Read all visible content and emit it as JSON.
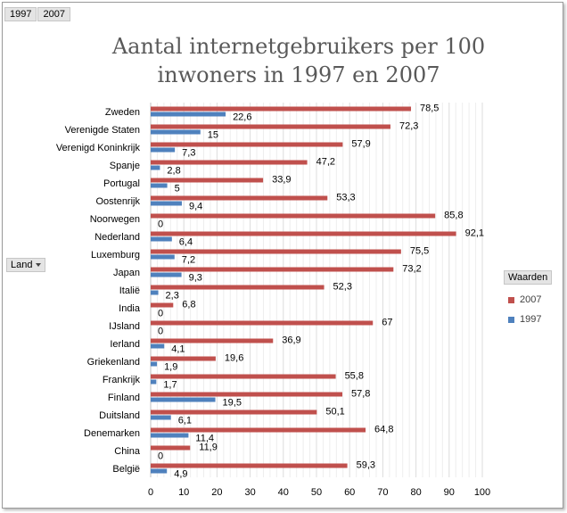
{
  "field_buttons": [
    "1997",
    "2007"
  ],
  "axis_field": {
    "label": "Land"
  },
  "legend_field": {
    "label": "Waarden"
  },
  "chart_data": {
    "type": "bar",
    "orientation": "horizontal",
    "title": "Aantal internetgebruikers per 100 inwoners in 1997 en 2007",
    "title_lines": [
      "Aantal internetgebruikers per 100",
      "inwoners in 1997 en 2007"
    ],
    "categories": [
      "Zweden",
      "Verenigde Staten",
      "Verenigd Koninkrijk",
      "Spanje",
      "Portugal",
      "Oostenrijk",
      "Noorwegen",
      "Nederland",
      "Luxemburg",
      "Japan",
      "Italië",
      "India",
      "IJsland",
      "Ierland",
      "Griekenland",
      "Frankrijk",
      "Finland",
      "Duitsland",
      "Denemarken",
      "China",
      "België"
    ],
    "series": [
      {
        "name": "2007",
        "color": "#c0504d",
        "values": [
          78.5,
          72.3,
          57.9,
          47.2,
          33.9,
          53.3,
          85.8,
          92.1,
          75.5,
          73.2,
          52.3,
          6.8,
          67,
          36.9,
          19.6,
          55.8,
          57.8,
          50.1,
          64.8,
          11.9,
          59.3
        ],
        "labels": [
          "78,5",
          "72,3",
          "57,9",
          "47,2",
          "33,9",
          "53,3",
          "85,8",
          "92,1",
          "75,5",
          "73,2",
          "52,3",
          "6,8",
          "67",
          "36,9",
          "19,6",
          "55,8",
          "57,8",
          "50,1",
          "64,8",
          "11,9",
          "59,3"
        ]
      },
      {
        "name": "1997",
        "color": "#4f81bd",
        "values": [
          22.6,
          15,
          7.3,
          2.8,
          5,
          9.4,
          0,
          6.4,
          7.2,
          9.3,
          2.3,
          0,
          0,
          4.1,
          1.9,
          1.7,
          19.5,
          6.1,
          11.4,
          0,
          4.9
        ],
        "labels": [
          "22,6",
          "15",
          "7,3",
          "2,8",
          "5",
          "9,4",
          "0",
          "6,4",
          "7,2",
          "9,3",
          "2,3",
          "0",
          "0",
          "4,1",
          "1,9",
          "1,7",
          "19,5",
          "6,1",
          "11,4",
          "0",
          "4,9"
        ]
      }
    ],
    "xlim": [
      0,
      100
    ],
    "xticks": [
      0,
      10,
      20,
      30,
      40,
      50,
      60,
      70,
      80,
      90,
      100
    ],
    "grid": true,
    "legend": "right"
  }
}
